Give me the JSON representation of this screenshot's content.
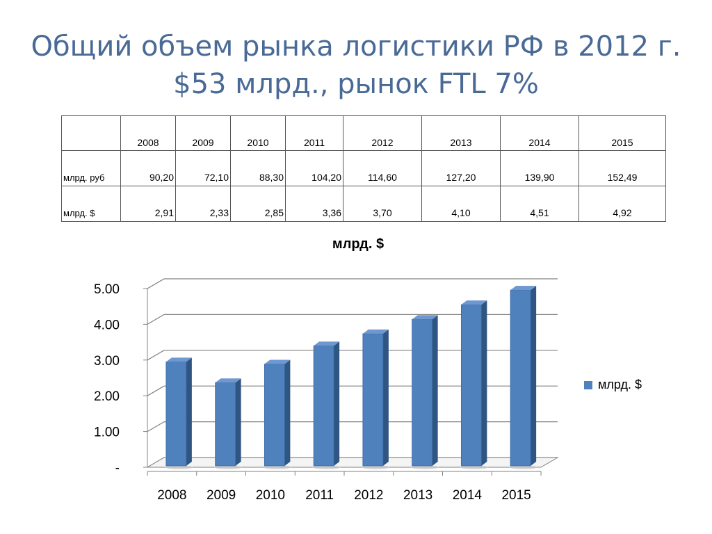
{
  "title": {
    "line1": "Общий объем рынка логистики РФ в 2012 г.",
    "line2": "$53 млрд., рынок FTL 7%"
  },
  "table": {
    "header": [
      "",
      "2008",
      "2009",
      "2010",
      "2011",
      "2012",
      "2013",
      "2014",
      "2015"
    ],
    "rows": [
      {
        "label": "млрд. руб",
        "values": [
          "90,20",
          "72,10",
          "88,30",
          "104,20",
          "114,60",
          "127,20",
          "139,90",
          "152,49"
        ]
      },
      {
        "label": "млрд. $",
        "values": [
          "2,91",
          "2,33",
          "2,85",
          "3,36",
          "3,70",
          "4,10",
          "4,51",
          "4,92"
        ]
      }
    ]
  },
  "chart_data": {
    "type": "bar",
    "title": "млрд. $",
    "categories": [
      "2008",
      "2009",
      "2010",
      "2011",
      "2012",
      "2013",
      "2014",
      "2015"
    ],
    "series": [
      {
        "name": "млрд. $",
        "values": [
          2.91,
          2.33,
          2.85,
          3.36,
          3.7,
          4.1,
          4.51,
          4.92
        ]
      }
    ],
    "y_ticks": [
      "-",
      "1.00",
      "2.00",
      "3.00",
      "4.00",
      "5.00"
    ],
    "ylim": [
      0,
      5
    ],
    "grid": true,
    "style": "3d-column",
    "legend": "right",
    "colors": {
      "bar": "#4f81bd",
      "bar_side": "#2f5582",
      "bar_top": "#6f98d0",
      "grid": "#808080"
    }
  }
}
